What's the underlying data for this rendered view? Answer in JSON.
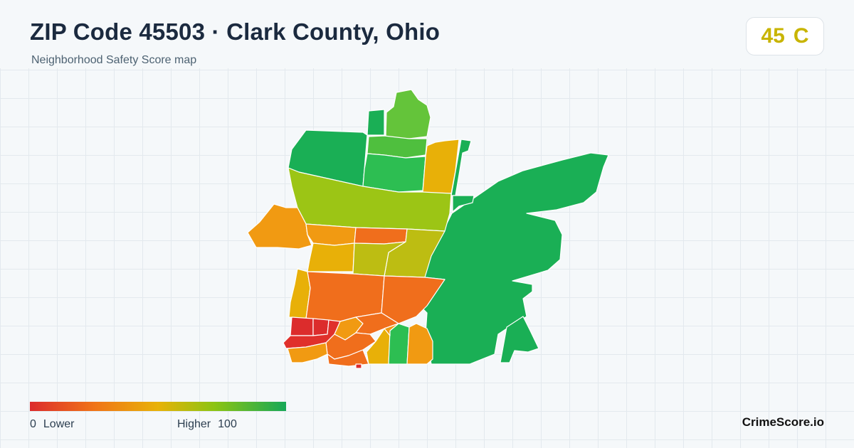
{
  "header": {
    "title": "ZIP Code 45503 · Clark County, Ohio",
    "subtitle": "Neighborhood Safety Score map"
  },
  "score": {
    "value": "45",
    "grade": "C",
    "color": "#c8b400"
  },
  "legend": {
    "min_value": "0",
    "min_label": "Lower",
    "max_label": "Higher",
    "max_value": "100",
    "colors": [
      "#dc2c2c",
      "#f07418",
      "#e8b208",
      "#8cc413",
      "#17a857"
    ]
  },
  "brand": "CrimeScore.io",
  "map": {
    "legend_scale": "safety score 0–100",
    "neighborhood_colors": {
      "red": "#dc2c2c",
      "orange_red": "#f06e1c",
      "orange": "#f19a12",
      "amber": "#e8b008",
      "olive": "#bdbd12",
      "yellow_green": "#9cc515",
      "light_green": "#64c43a",
      "green": "#2dbe52",
      "dark_green": "#1aaf55"
    }
  }
}
